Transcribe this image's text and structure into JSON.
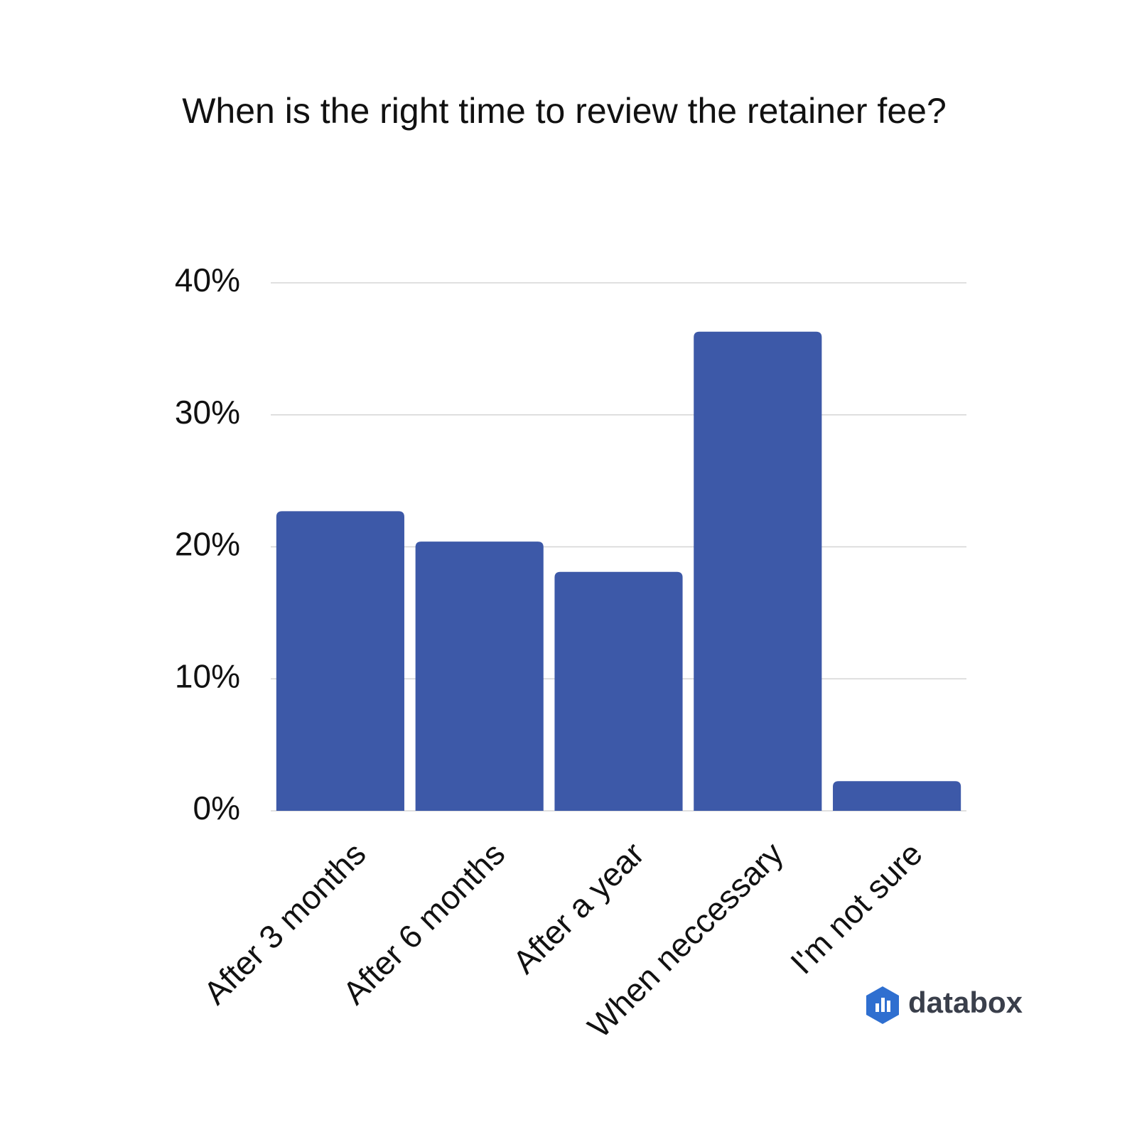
{
  "chart_data": {
    "type": "bar",
    "title": "When is the right time to review the retainer fee?",
    "categories": [
      "After 3 months",
      "After 6 months",
      "After a year",
      "When neccessary",
      "I'm not sure"
    ],
    "values": [
      22.7,
      20.4,
      18.1,
      36.3,
      2.25
    ],
    "color": "#3d59a8",
    "ylim": [
      0,
      40
    ],
    "yticks": [
      {
        "value": 0,
        "label": "0%"
      },
      {
        "value": 10,
        "label": "10%"
      },
      {
        "value": 20,
        "label": "20%"
      },
      {
        "value": 30,
        "label": "30%"
      },
      {
        "value": 40,
        "label": "40%"
      }
    ],
    "grid": true
  },
  "branding": "databox"
}
